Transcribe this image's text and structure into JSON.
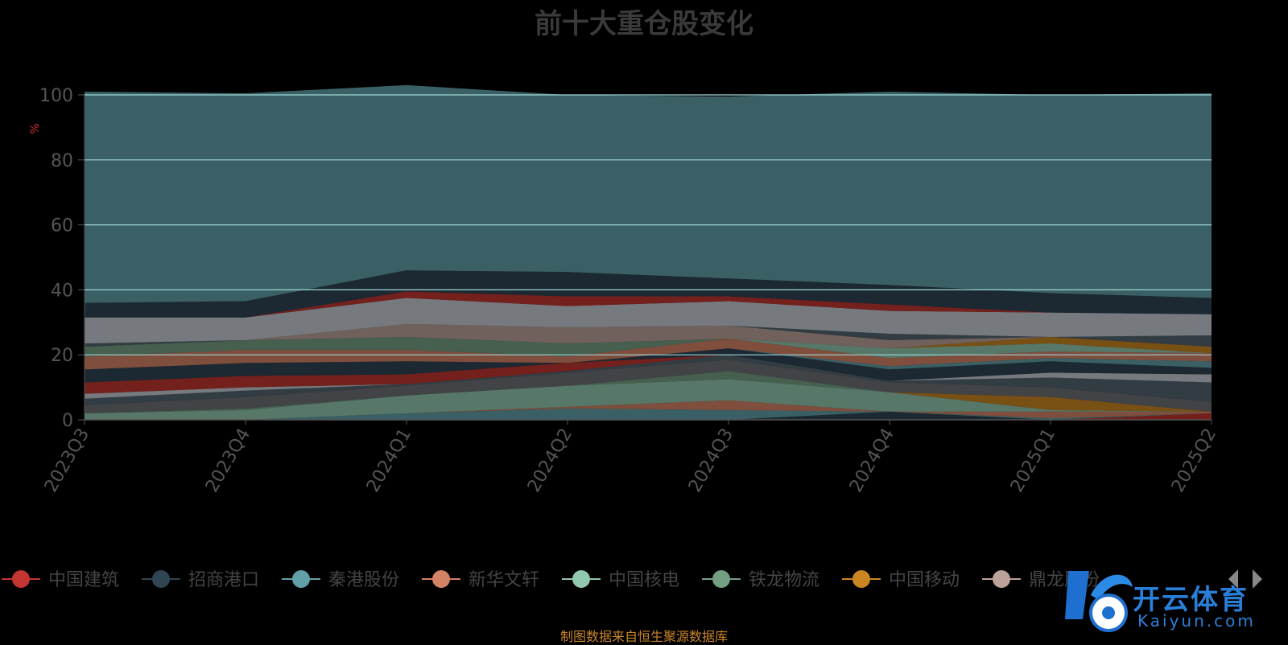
{
  "chart_data": {
    "type": "area",
    "stacked": true,
    "title": "前十大重仓股变化",
    "ylabel": "%",
    "ylim": [
      0,
      100
    ],
    "yticks": [
      0,
      20,
      40,
      60,
      80,
      100
    ],
    "grid": true,
    "legend_position": "bottom",
    "categories": [
      "2023Q3",
      "2023Q4",
      "2024Q1",
      "2024Q2",
      "2024Q3",
      "2024Q4",
      "2025Q1",
      "2025Q2"
    ],
    "series": [
      {
        "name": "中国建筑",
        "color": "#c23531",
        "values": [
          0,
          0,
          0,
          0,
          0,
          0,
          0,
          2
        ]
      },
      {
        "name": "招商港口",
        "color": "#2f4554",
        "values": [
          0,
          0,
          0,
          0,
          0,
          2.5,
          0,
          0
        ]
      },
      {
        "name": "秦港股份",
        "color": "#61a0a8",
        "values": [
          0,
          0,
          2,
          3.5,
          3,
          0,
          0.5,
          0
        ]
      },
      {
        "name": "新华文轩",
        "color": "#d48265",
        "values": [
          0,
          0,
          0,
          0.5,
          3,
          0,
          2,
          0.5
        ]
      },
      {
        "name": "中国核电",
        "color": "#91c7ae",
        "values": [
          2,
          3,
          5.5,
          6.5,
          6.5,
          6,
          0.5,
          0
        ]
      },
      {
        "name": "铁龙物流",
        "color": "#749f83",
        "values": [
          0,
          0.5,
          0,
          0,
          2.5,
          0,
          0,
          0
        ]
      },
      {
        "name": "中国移动",
        "color": "#ca8622",
        "values": [
          0,
          0,
          0,
          0,
          0,
          0,
          4,
          0
        ]
      },
      {
        "name": "鼎龙股份",
        "color": "#bda29a",
        "values": [
          0,
          0,
          0,
          0,
          0,
          0,
          0,
          0
        ]
      },
      {
        "name": "",
        "color": "#6e7074",
        "values": [
          2.5,
          3.5,
          3,
          4,
          3.5,
          3,
          3,
          3
        ]
      },
      {
        "name": "",
        "color": "#546570",
        "values": [
          2,
          2,
          0.5,
          0.5,
          1.5,
          0.5,
          3,
          6
        ]
      },
      {
        "name": "",
        "color": "#c4ccd3",
        "values": [
          1.5,
          1,
          0,
          0,
          0,
          0,
          1.5,
          2.5
        ]
      },
      {
        "name": "",
        "color": "#c23531",
        "values": [
          3.5,
          3.5,
          3,
          2.5,
          0,
          0,
          0,
          0
        ]
      },
      {
        "name": "",
        "color": "#2f4554",
        "values": [
          4,
          4,
          4,
          0,
          2,
          3.5,
          3.5,
          2
        ]
      },
      {
        "name": "",
        "color": "#61a0a8",
        "values": [
          0,
          0,
          0,
          0,
          0,
          1,
          1,
          2
        ]
      },
      {
        "name": "",
        "color": "#d48265",
        "values": [
          4,
          4,
          3.5,
          2,
          3,
          2.5,
          2,
          2.5
        ]
      },
      {
        "name": "",
        "color": "#91c7ae",
        "values": [
          0,
          0,
          0,
          0,
          0,
          3,
          2.5,
          0
        ]
      },
      {
        "name": "",
        "color": "#ca8622",
        "values": [
          0,
          0,
          0,
          0,
          0,
          0,
          2,
          2
        ]
      },
      {
        "name": "",
        "color": "#749f83",
        "values": [
          3,
          3,
          4,
          4,
          0,
          0,
          0,
          0
        ]
      },
      {
        "name": "",
        "color": "#bda29a",
        "values": [
          0,
          0,
          4,
          5,
          4,
          2.5,
          0,
          0
        ]
      },
      {
        "name": "",
        "color": "#546570",
        "values": [
          1,
          0,
          0,
          0,
          0,
          2,
          0,
          3.5
        ]
      },
      {
        "name": "",
        "color": "#c4ccd3",
        "values": [
          8,
          7,
          8,
          6.5,
          7.5,
          7,
          7.5,
          6.5
        ]
      },
      {
        "name": "",
        "color": "#c23531",
        "values": [
          0,
          0,
          2,
          3,
          1.5,
          2,
          0,
          0
        ]
      },
      {
        "name": "",
        "color": "#2f4554",
        "values": [
          4.5,
          5,
          6.5,
          7.5,
          5.5,
          6,
          6,
          5
        ]
      },
      {
        "name": "",
        "color": "#61a0a8",
        "values": [
          65,
          64,
          57,
          54.5,
          56,
          59.5,
          61,
          63
        ]
      }
    ],
    "source": "制图数据来自恒生聚源数据库"
  },
  "watermark": {
    "text": "开云体育",
    "sub": "Kaiyun.com"
  }
}
